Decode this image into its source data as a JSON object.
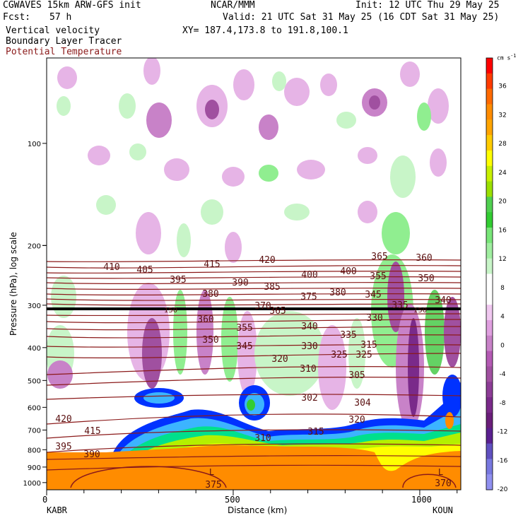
{
  "header": {
    "model": "CGWAVES 15km ARW-GFS init",
    "forecast_label": "Fcst:",
    "forecast_hours": "57 h",
    "field_vv": "Vertical velocity",
    "field_blt": "Boundary Layer Tracer",
    "field_theta": "Potential Temperature",
    "org": "NCAR/MMM",
    "init": "Init: 12 UTC Thu 29 May 25",
    "valid": "Valid: 21 UTC Sat 31 May 25 (16 CDT Sat 31 May 25)",
    "xy": "XY= 187.4,173.8 to 191.8,100.1"
  },
  "colors": {
    "theta": "#8b1a1a",
    "vv_up": [
      "#c8f5c8",
      "#90ee90",
      "#64d264"
    ],
    "vv_down": [
      "#e6b4e6",
      "#c882c8",
      "#a050a0",
      "#7a2a8a"
    ],
    "blt": [
      "#0032ff",
      "#3cb4ff",
      "#00e08c",
      "#32cd32",
      "#b4f000",
      "#ffff00",
      "#ff8c00"
    ]
  },
  "chart_data": {
    "type": "heatmap",
    "title": "Vertical velocity",
    "xlabel": "Distance (km)",
    "ylabel": "Pressure (hPa), log scale",
    "x_ticks": [
      0,
      500,
      1000
    ],
    "x_range": [
      0,
      1110
    ],
    "x_endpoints": {
      "left": "KABR",
      "right": "KOUN"
    },
    "y_ticks": [
      100,
      200,
      300,
      400,
      500,
      600,
      700,
      800,
      900,
      1000
    ],
    "y_scale": "log",
    "tropopause_labels": [
      "150",
      "150"
    ],
    "theta_labels": [
      "410",
      "405",
      "395",
      "415",
      "420",
      "390",
      "385",
      "380",
      "400",
      "400",
      "380",
      "375",
      "370",
      "365",
      "360",
      "355",
      "350",
      "345",
      "340",
      "335",
      "330",
      "325",
      "320",
      "315",
      "310",
      "305",
      "302",
      "304",
      "420",
      "415",
      "395",
      "390",
      "375",
      "370",
      "365",
      "360",
      "355",
      "350",
      "345",
      "340",
      "335",
      "330",
      "325",
      "320",
      "315",
      "310"
    ],
    "pbl_low_labels": [
      "L",
      "L"
    ],
    "colorbar": {
      "units": "cm s",
      "units_exp": "-1",
      "ticks": [
        "36",
        "32",
        "28",
        "24",
        "20",
        "16",
        "12",
        "8",
        "4",
        "0",
        "-4",
        "-8",
        "-12",
        "-16",
        "-20"
      ],
      "colors": [
        "#ff0000",
        "#ff3b00",
        "#ff6a00",
        "#ff8c00",
        "#ffa500",
        "#ffcc00",
        "#ffff00",
        "#c8f000",
        "#9be000",
        "#50d050",
        "#32cd32",
        "#78e678",
        "#a0eea0",
        "#c8f5c8",
        "#ffffff",
        "#ffffff",
        "#f0c8f0",
        "#e0a0e0",
        "#c882c8",
        "#b45ab4",
        "#a050a0",
        "#8c3c96",
        "#7a2a8a",
        "#6a1e7a",
        "#5a2090",
        "#6050c0",
        "#7878e0",
        "#9090f0"
      ]
    }
  }
}
